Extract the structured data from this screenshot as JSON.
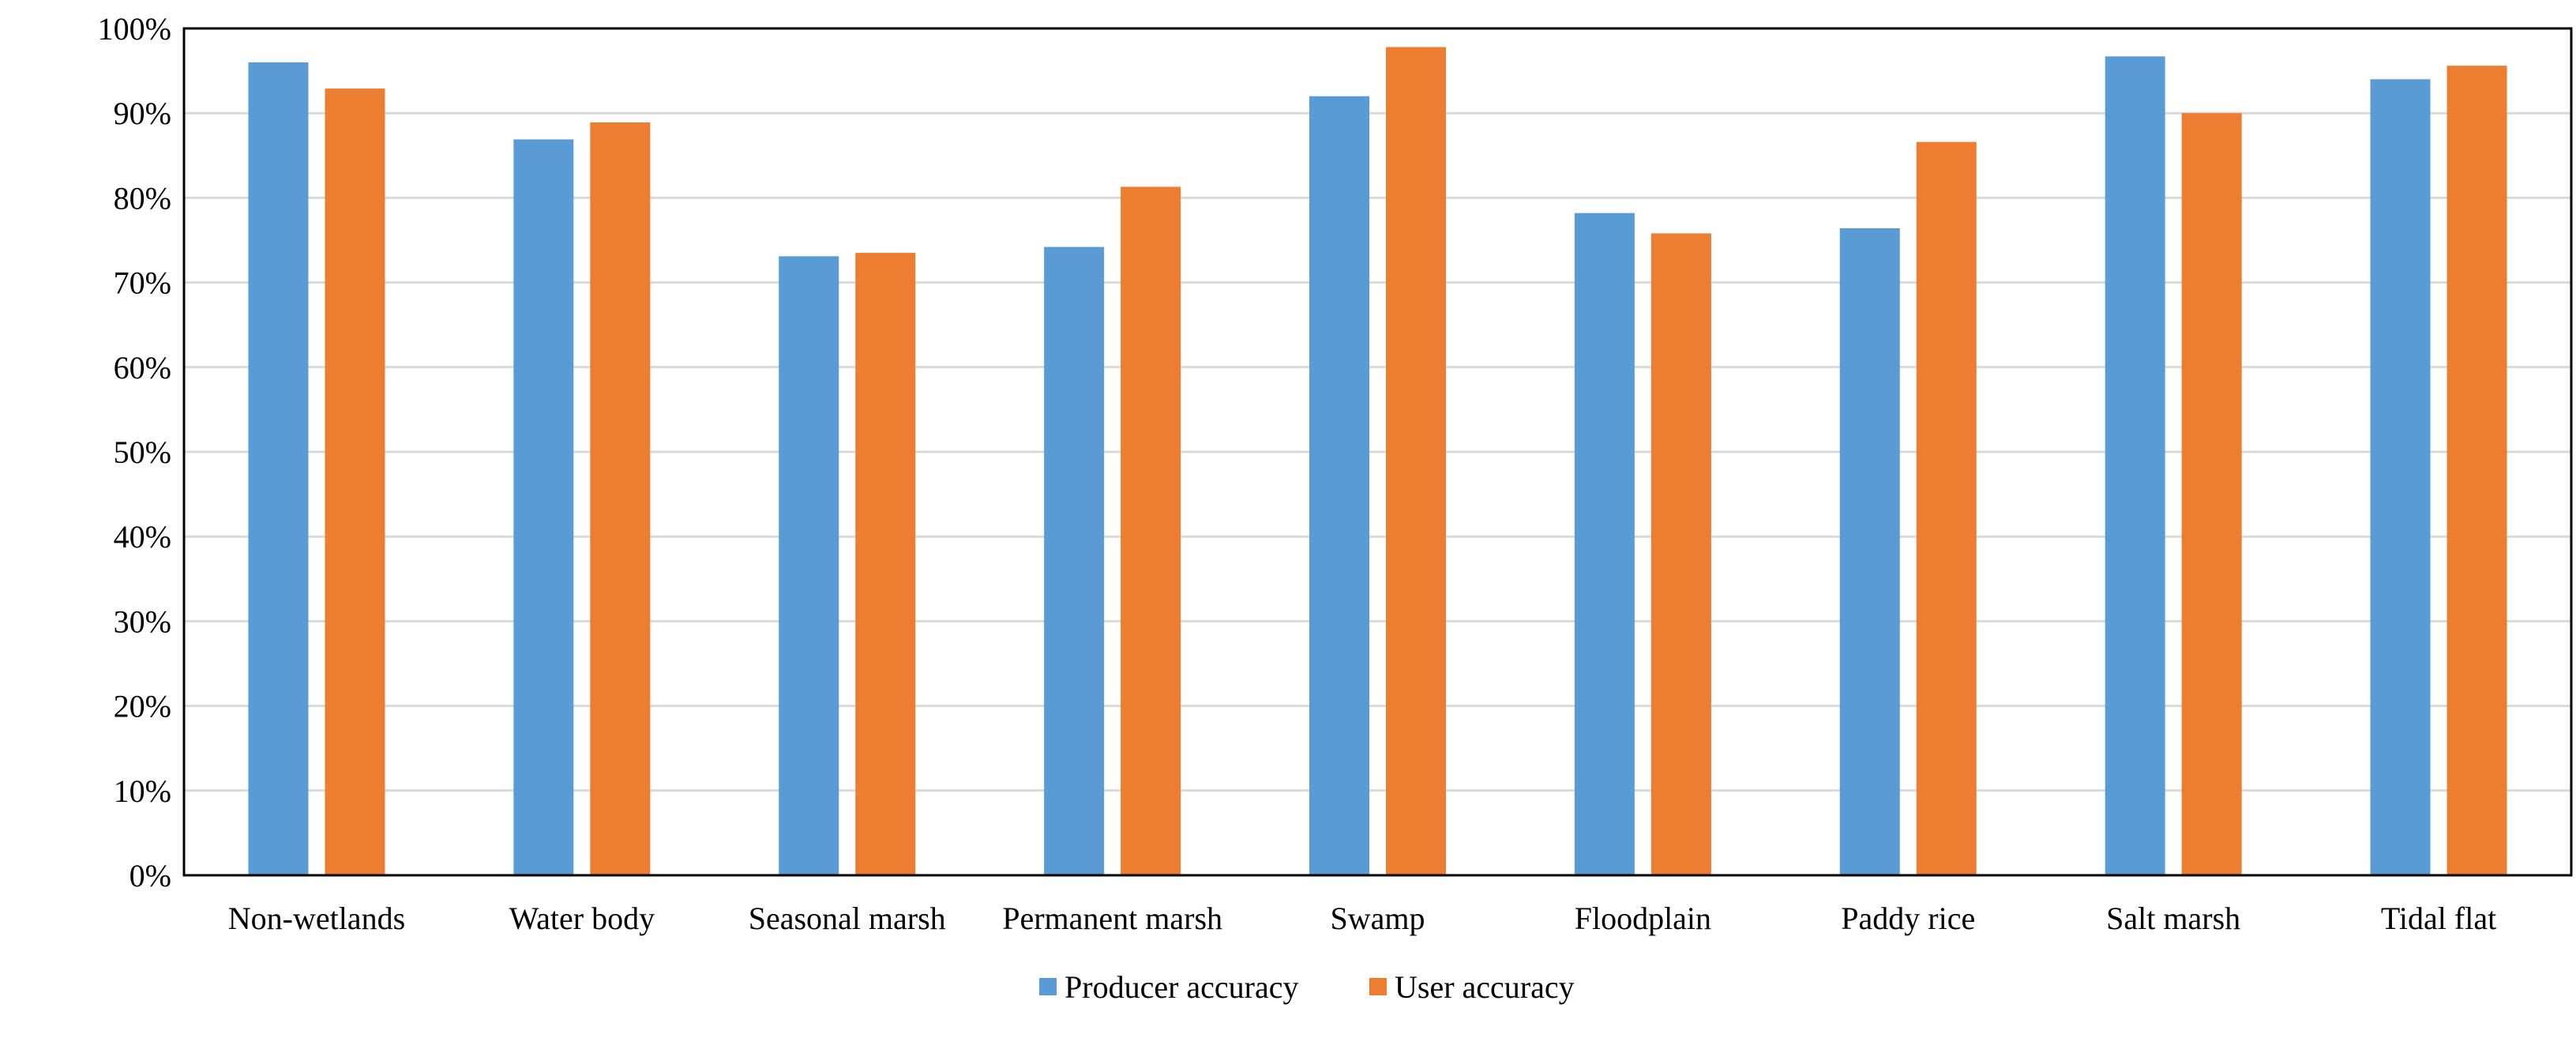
{
  "chart_data": {
    "type": "bar",
    "title": "",
    "xlabel": "",
    "ylabel": "",
    "categories": [
      "Non-wetlands",
      "Water body",
      "Seasonal marsh",
      "Permanent marsh",
      "Swamp",
      "Floodplain",
      "Paddy rice",
      "Salt marsh",
      "Tidal flat"
    ],
    "series": [
      {
        "name": "Producer accuracy",
        "color": "#5B9BD5",
        "values": [
          96.0,
          86.9,
          73.1,
          74.2,
          92.0,
          78.2,
          76.4,
          96.7,
          94.0
        ]
      },
      {
        "name": "User accuracy",
        "color": "#ED7D31",
        "values": [
          92.9,
          88.9,
          73.5,
          81.3,
          97.8,
          75.8,
          86.6,
          90.0,
          95.6
        ]
      }
    ],
    "ylim": [
      0,
      100
    ],
    "yticks": [
      0,
      10,
      20,
      30,
      40,
      50,
      60,
      70,
      80,
      90,
      100
    ],
    "ytick_labels": [
      "0%",
      "10%",
      "20%",
      "30%",
      "40%",
      "50%",
      "60%",
      "70%",
      "80%",
      "90%",
      "100%"
    ],
    "grid": true,
    "legend": "bottom-center"
  }
}
